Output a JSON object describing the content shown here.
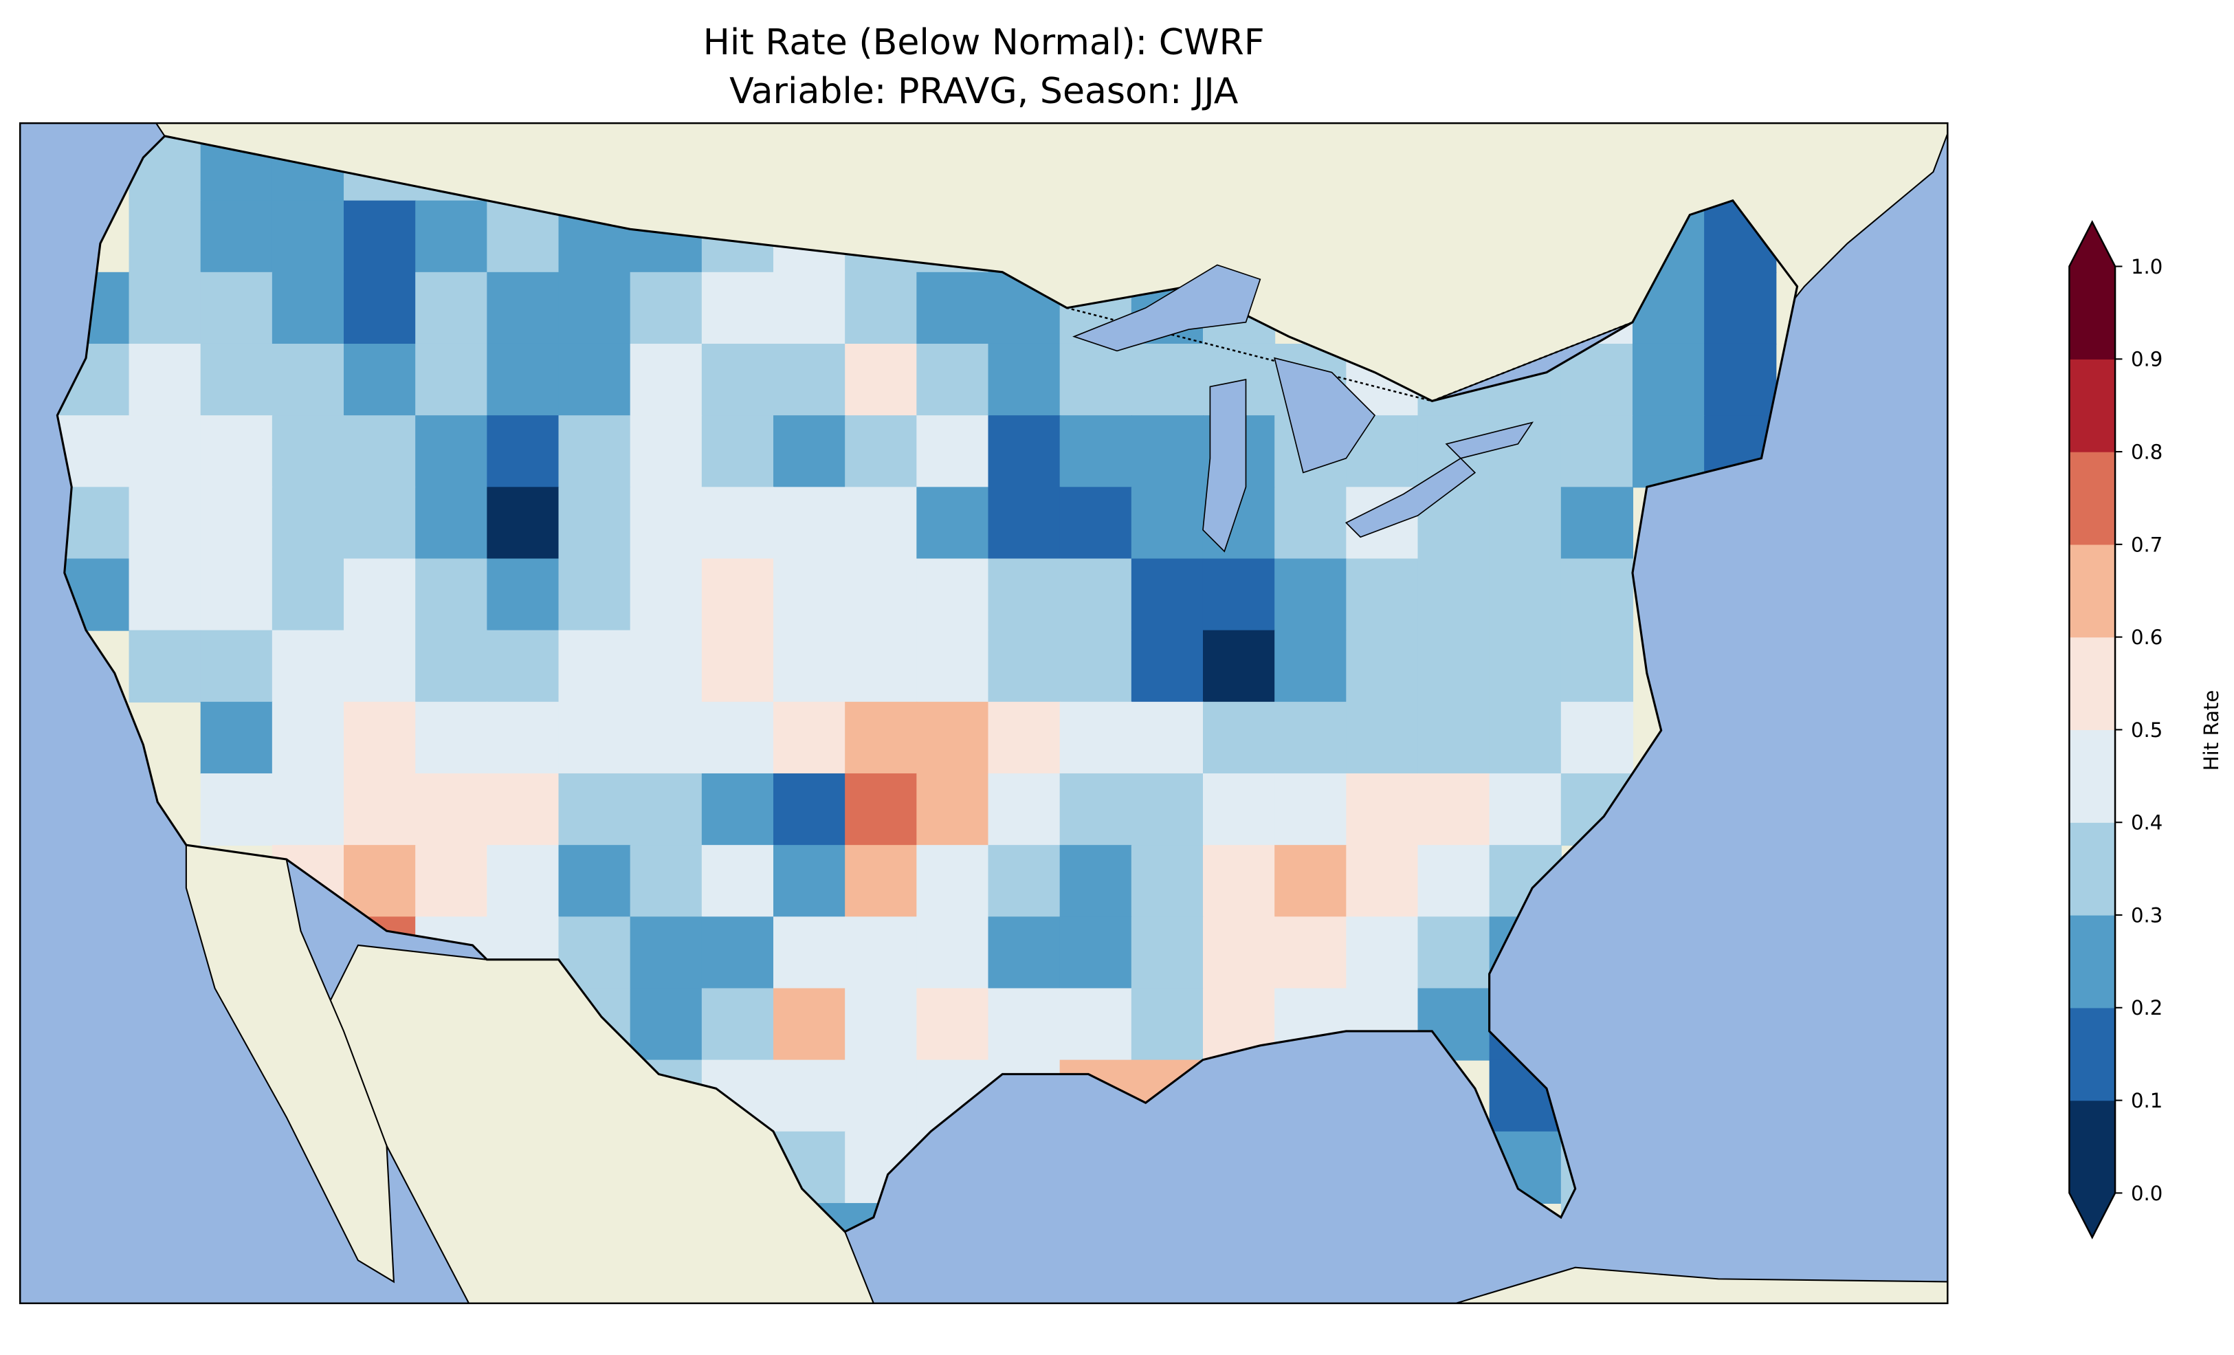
{
  "chart_data": {
    "type": "heatmap",
    "title": "Hit Rate (Below Normal): CWRF",
    "subtitle": "Variable: PRAVG, Season: JJA",
    "colorbar": {
      "label": "Hit Rate",
      "range": [
        0.0,
        1.0
      ],
      "extend": "both",
      "ticks": [
        "0.0",
        "0.1",
        "0.2",
        "0.3",
        "0.4",
        "0.5",
        "0.6",
        "0.7",
        "0.8",
        "0.9",
        "1.0"
      ],
      "colors": [
        "#08305f",
        "#2467ac",
        "#539dc8",
        "#a7cfe3",
        "#e1ecf3",
        "#f9e5dc",
        "#f5b898",
        "#dc6f57",
        "#b1212e",
        "#67001f"
      ]
    },
    "map_colors": {
      "ocean": "#97b6e1",
      "land": "#efefdb"
    },
    "grid_note": "approximate regional hit rates over CONUS, rows north to south, columns west to east",
    "values": [
      [
        null,
        0.35,
        0.25,
        0.25,
        0.35,
        0.35,
        null,
        null,
        null,
        null,
        null,
        null,
        null,
        null,
        null,
        null,
        null,
        null,
        null,
        null,
        null,
        null,
        null,
        null
      ],
      [
        null,
        0.35,
        0.25,
        0.25,
        0.15,
        0.25,
        0.35,
        0.25,
        0.25,
        0.35,
        0.45,
        0.35,
        0.35,
        0.25,
        null,
        null,
        null,
        null,
        null,
        null,
        null,
        null,
        0.25,
        0.15
      ],
      [
        0.25,
        0.35,
        0.35,
        0.25,
        0.15,
        0.35,
        0.25,
        0.25,
        0.35,
        0.45,
        0.45,
        0.35,
        0.25,
        0.25,
        0.35,
        0.25,
        0.35,
        null,
        null,
        null,
        null,
        0.45,
        0.25,
        0.15
      ],
      [
        0.35,
        0.45,
        0.35,
        0.35,
        0.25,
        0.35,
        0.25,
        0.25,
        0.45,
        0.35,
        0.35,
        0.55,
        0.35,
        0.25,
        0.35,
        0.35,
        0.35,
        0.35,
        0.45,
        0.35,
        0.35,
        0.35,
        0.25,
        0.15
      ],
      [
        0.45,
        0.45,
        0.45,
        0.35,
        0.35,
        0.25,
        0.15,
        0.35,
        0.45,
        0.35,
        0.25,
        0.35,
        0.45,
        0.15,
        0.25,
        0.25,
        0.25,
        0.35,
        0.35,
        0.35,
        0.35,
        0.35,
        0.25,
        0.15
      ],
      [
        0.35,
        0.45,
        0.45,
        0.35,
        0.35,
        0.25,
        0.05,
        0.35,
        0.45,
        0.45,
        0.45,
        0.45,
        0.25,
        0.15,
        0.15,
        0.25,
        0.25,
        0.35,
        0.45,
        0.35,
        0.35,
        0.25,
        null,
        null
      ],
      [
        0.25,
        0.45,
        0.45,
        0.35,
        0.45,
        0.35,
        0.25,
        0.35,
        0.45,
        0.55,
        0.45,
        0.45,
        0.45,
        0.35,
        0.35,
        0.15,
        0.15,
        0.25,
        0.35,
        0.35,
        0.35,
        0.35,
        null,
        null
      ],
      [
        null,
        0.35,
        0.35,
        0.45,
        0.45,
        0.35,
        0.35,
        0.45,
        0.45,
        0.55,
        0.45,
        0.45,
        0.45,
        0.35,
        0.35,
        0.15,
        0.05,
        0.25,
        0.35,
        0.35,
        0.35,
        0.35,
        null,
        null
      ],
      [
        null,
        null,
        0.25,
        0.45,
        0.55,
        0.45,
        0.45,
        0.45,
        0.45,
        0.45,
        0.55,
        0.65,
        0.65,
        0.55,
        0.45,
        0.45,
        0.35,
        0.35,
        0.35,
        0.35,
        0.35,
        0.45,
        null,
        null
      ],
      [
        null,
        null,
        0.45,
        0.45,
        0.55,
        0.55,
        0.55,
        0.35,
        0.35,
        0.25,
        0.15,
        0.75,
        0.65,
        0.45,
        0.35,
        0.35,
        0.45,
        0.45,
        0.55,
        0.55,
        0.45,
        0.35,
        null,
        null
      ],
      [
        null,
        null,
        null,
        0.55,
        0.65,
        0.55,
        0.45,
        0.25,
        0.35,
        0.45,
        0.25,
        0.65,
        0.45,
        0.35,
        0.25,
        0.35,
        0.55,
        0.65,
        0.55,
        0.45,
        0.35,
        null,
        null,
        null
      ],
      [
        null,
        null,
        null,
        null,
        0.75,
        0.45,
        0.45,
        0.35,
        0.25,
        0.25,
        0.45,
        0.45,
        0.45,
        0.25,
        0.25,
        0.35,
        0.55,
        0.55,
        0.45,
        0.35,
        0.25,
        null,
        null,
        null
      ],
      [
        null,
        null,
        null,
        null,
        null,
        null,
        null,
        0.35,
        0.25,
        0.35,
        0.65,
        0.45,
        0.55,
        0.45,
        0.45,
        0.35,
        0.55,
        0.45,
        0.45,
        0.25,
        0.15,
        0.25,
        null,
        null
      ],
      [
        null,
        null,
        null,
        null,
        null,
        null,
        null,
        null,
        0.35,
        0.45,
        0.45,
        0.45,
        0.45,
        0.45,
        0.65,
        0.65,
        0.45,
        null,
        null,
        null,
        0.15,
        0.25,
        null,
        null
      ],
      [
        null,
        null,
        null,
        null,
        null,
        null,
        null,
        null,
        null,
        null,
        0.35,
        0.45,
        0.45,
        null,
        null,
        null,
        null,
        null,
        null,
        null,
        0.25,
        0.35,
        null,
        null
      ],
      [
        null,
        null,
        null,
        null,
        null,
        null,
        null,
        null,
        null,
        null,
        0.25,
        0.25,
        null,
        null,
        null,
        null,
        null,
        null,
        null,
        null,
        null,
        0.35,
        null,
        null
      ]
    ]
  }
}
